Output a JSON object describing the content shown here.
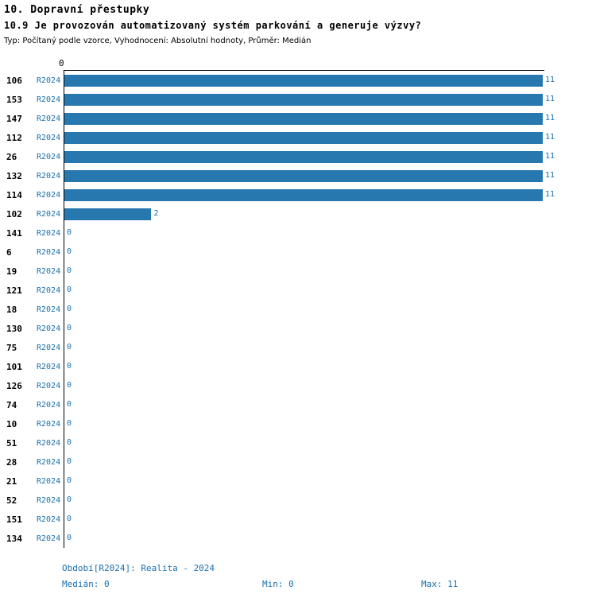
{
  "header": {
    "title": "10. Dopravní přestupky",
    "subtitle": "10.9 Je provozován automatizovaný systém parkování a generuje výzvy?",
    "meta": "Typ: Počítaný podle vzorce, Vyhodnocení: Absolutní hodnoty, Průměr: Medián"
  },
  "chart_data": {
    "type": "bar",
    "orientation": "horizontal",
    "title": "10.9 Je provozován automatizovaný systém parkování a generuje výzvy?",
    "period_label": "R2024",
    "axis_zero_label": "0",
    "xlim": [
      0,
      11
    ],
    "grid": false,
    "bar_color": "#2878b0",
    "label_color": "#1a6fad",
    "categories": [
      "106",
      "153",
      "147",
      "112",
      "26",
      "132",
      "114",
      "102",
      "141",
      "6",
      "19",
      "121",
      "18",
      "130",
      "75",
      "101",
      "126",
      "74",
      "10",
      "51",
      "28",
      "21",
      "52",
      "151",
      "134"
    ],
    "values": [
      11,
      11,
      11,
      11,
      11,
      11,
      11,
      2,
      0,
      0,
      0,
      0,
      0,
      0,
      0,
      0,
      0,
      0,
      0,
      0,
      0,
      0,
      0,
      0,
      0
    ]
  },
  "footer": {
    "period": "Období[R2024]: Realita - 2024",
    "median": "Medián: 0",
    "min": "Min: 0",
    "max": "Max: 11"
  }
}
